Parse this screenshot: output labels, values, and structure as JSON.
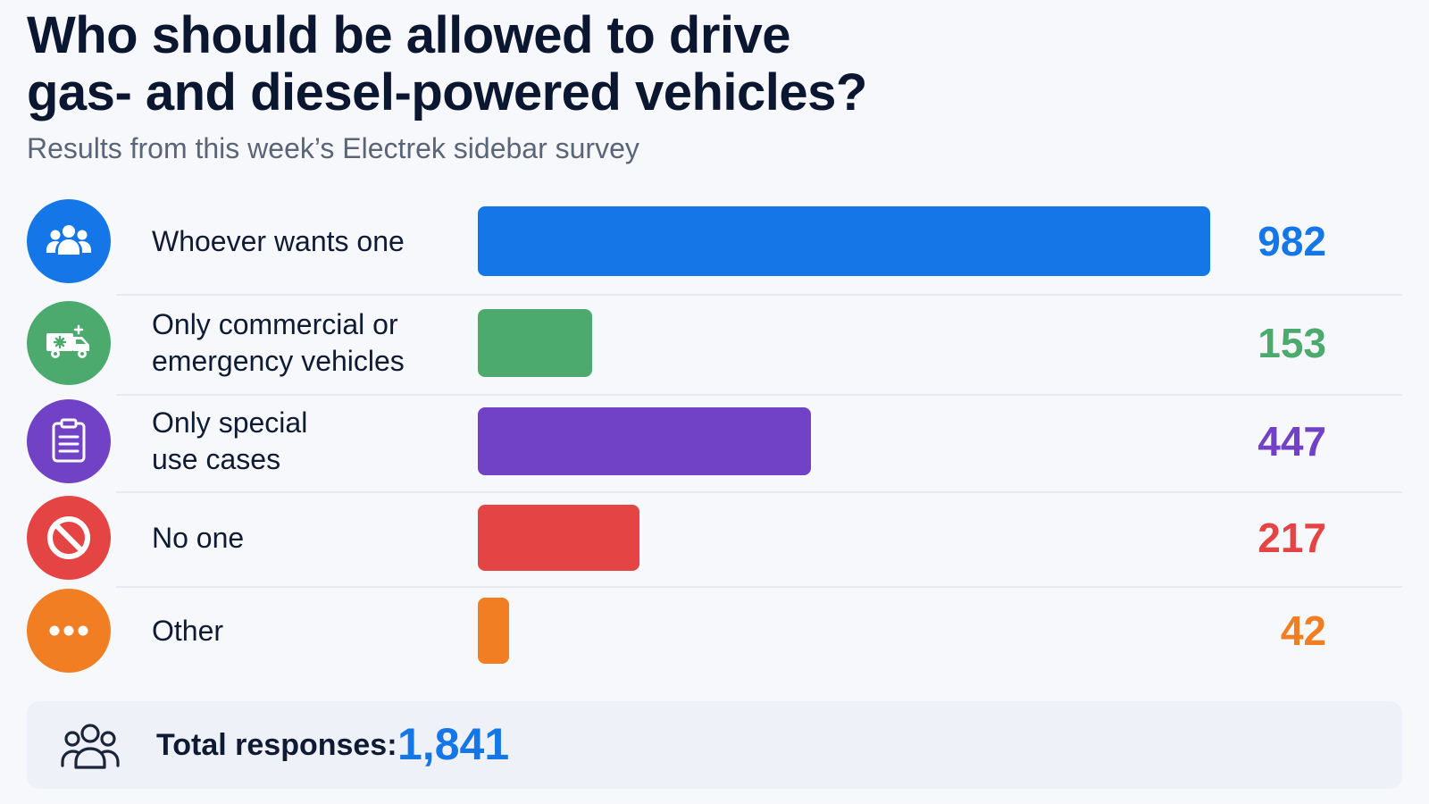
{
  "title_line1": "Who should be allowed to drive",
  "title_line2": "gas- and diesel-powered vehicles?",
  "subtitle": "Results from this week’s Electrek sidebar survey",
  "chart_data": {
    "type": "bar",
    "orientation": "horizontal",
    "title": "Who should be allowed to drive gas- and diesel-powered vehicles?",
    "subtitle": "Results from this week’s Electrek sidebar survey",
    "xlabel": "",
    "ylabel": "",
    "xlim": [
      0,
      982
    ],
    "grid": false,
    "legend": "none",
    "categories": [
      "Whoever wants one",
      "Only commercial or emergency vehicles",
      "Only special use cases",
      "No one",
      "Other"
    ],
    "values": [
      982,
      153,
      447,
      217,
      42
    ],
    "value_labels": [
      "982",
      "153",
      "447",
      "217",
      "42"
    ],
    "colors": [
      "#1576e8",
      "#4caa6e",
      "#7142c6",
      "#e54444",
      "#f27e23"
    ],
    "icons": [
      "group-icon",
      "ambulance-icon",
      "clipboard-icon",
      "prohibited-icon",
      "more-icon"
    ],
    "label_lines": [
      [
        "Whoever wants one"
      ],
      [
        "Only commercial or",
        "emergency vehicles"
      ],
      [
        "Only special",
        "use cases"
      ],
      [
        "No one"
      ],
      [
        "Other"
      ]
    ]
  },
  "total": {
    "label": "Total responses:",
    "value": "1,841",
    "icon": "people-outline-icon"
  }
}
